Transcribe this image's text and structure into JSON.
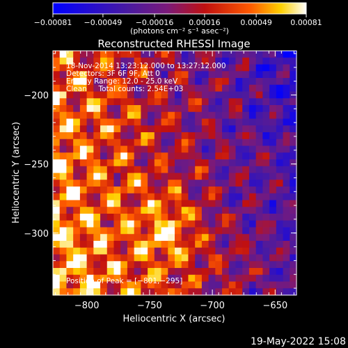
{
  "chart_data": {
    "type": "heatmap",
    "title": "Reconstructed RHESSI Image",
    "xlabel": "Heliocentric X (arcsec)",
    "ylabel": "Heliocentric Y (arcsec)",
    "xlim": [
      -827,
      -633
    ],
    "ylim": [
      -345,
      -168
    ],
    "x_ticks": [
      -800,
      -750,
      -700,
      -650
    ],
    "y_ticks": [
      -200,
      -250,
      -300
    ],
    "x_tick_labels": [
      "−800",
      "−750",
      "−700",
      "−650"
    ],
    "y_tick_labels": [
      "−200",
      "−250",
      "−300"
    ],
    "colorbar": {
      "range": [
        -0.00081,
        0.00081
      ],
      "ticks": [
        -0.00081,
        -0.00049,
        -0.00016,
        0.00016,
        0.00049,
        0.00081
      ],
      "tick_labels": [
        "−0.00081",
        "−0.00049",
        "−0.00016",
        "0.00016",
        "0.00049",
        "0.00081"
      ],
      "unit_label": "(photons cm⁻² s⁻¹ asec⁻²)",
      "colormap": [
        "#0000ff",
        "#4a1aa0",
        "#7a1a7a",
        "#c01010",
        "#ff5a00",
        "#ffd000",
        "#ffffff"
      ]
    },
    "peak": [
      -801,
      -295
    ],
    "annotations": {
      "time": "18-Nov-2014 13:23:12.000 to 13:27:12.000",
      "detectors": "Detectors: 3F 6F 9F, Att 0",
      "energy": "Energy Range: 12.0 - 25.0 keV",
      "method": "Clean     Total counts: 2.54E+03",
      "peak_text": "Position of Peak = [−801,−295]"
    }
  },
  "footer": {
    "date": "19-May-2022 15:08"
  }
}
